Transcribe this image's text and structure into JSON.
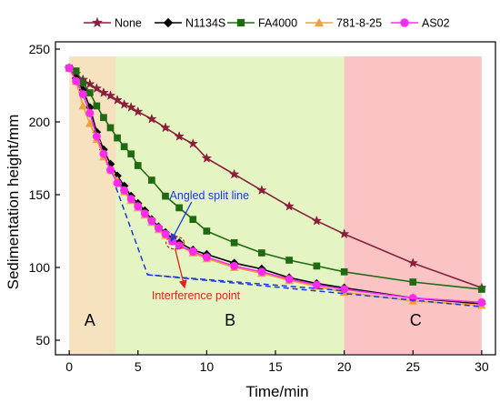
{
  "chart_data": {
    "type": "line",
    "xlabel": "Time/min",
    "ylabel": "Sedimentation height/mm",
    "xlim": [
      -1,
      31
    ],
    "ylim": [
      40,
      255
    ],
    "xticks": [
      0,
      5,
      10,
      15,
      20,
      25,
      30
    ],
    "yticks": [
      50,
      100,
      150,
      200,
      250
    ],
    "grid": false,
    "legend_position": "top",
    "regions": [
      {
        "label": "A",
        "x_start": 0,
        "x_end": 3.4,
        "color": "#f7e2c0",
        "label_x": 1.5,
        "label_y": 63
      },
      {
        "label": "B",
        "x_start": 3.4,
        "x_end": 20,
        "color": "#e4f4c2",
        "label_x": 11.7,
        "label_y": 63
      },
      {
        "label": "C",
        "x_start": 20,
        "x_end": 30,
        "color": "#fbc4c4",
        "label_x": 25.2,
        "label_y": 63
      }
    ],
    "series": [
      {
        "name": "None",
        "color": "#8b1e3a",
        "marker": "star",
        "x": [
          0,
          0.5,
          1,
          1.5,
          2,
          2.5,
          3,
          3.5,
          4,
          4.5,
          5,
          6,
          7,
          8,
          9,
          10,
          12,
          14,
          16,
          18,
          20,
          25,
          30
        ],
        "y": [
          237,
          233,
          229,
          226,
          223,
          220,
          218,
          215,
          212,
          210,
          207,
          202,
          196,
          190,
          185,
          175,
          164,
          153,
          142,
          132,
          123,
          103,
          86
        ]
      },
      {
        "name": "N1134S",
        "color": "#000000",
        "marker": "diamond",
        "x": [
          0,
          0.5,
          1,
          1.5,
          2,
          2.5,
          3,
          3.5,
          4,
          4.5,
          5,
          5.5,
          6,
          6.5,
          7,
          7.5,
          8,
          9,
          10,
          12,
          14,
          16,
          18,
          20,
          25,
          30
        ],
        "y": [
          237,
          230,
          222,
          210,
          193,
          181,
          171,
          163,
          156,
          149,
          144,
          139,
          133,
          128,
          124,
          120,
          117,
          112,
          109,
          103,
          99,
          93,
          89,
          86,
          79,
          75
        ]
      },
      {
        "name": "FA4000",
        "color": "#1f6b12",
        "marker": "square",
        "x": [
          0,
          0.5,
          1,
          1.5,
          2,
          2.5,
          3,
          3.5,
          4,
          4.5,
          5,
          6,
          7,
          8,
          9,
          10,
          12,
          14,
          16,
          18,
          20,
          25,
          30
        ],
        "y": [
          237,
          235,
          227,
          220,
          211,
          203,
          196,
          189,
          183,
          178,
          170,
          160,
          149,
          141,
          133,
          125,
          117,
          110,
          105,
          101,
          97,
          90,
          85
        ]
      },
      {
        "name": "781-8-25",
        "color": "#f2a03c",
        "marker": "triangle",
        "x": [
          0,
          0.5,
          1,
          1.5,
          2,
          2.5,
          3,
          3.5,
          4,
          4.5,
          5,
          5.5,
          6,
          6.5,
          7,
          7.5,
          8,
          9,
          10,
          12,
          14,
          16,
          18,
          20,
          25,
          30
        ],
        "y": [
          237,
          228,
          211,
          199,
          188,
          176,
          167,
          160,
          152,
          146,
          141,
          136,
          131,
          126,
          122,
          118,
          115,
          110,
          106,
          100,
          96,
          91,
          87,
          83,
          77,
          74
        ]
      },
      {
        "name": "AS02",
        "color": "#ff2cf0",
        "marker": "circle",
        "x": [
          0,
          0.5,
          1,
          1.5,
          2,
          2.5,
          3,
          3.5,
          4,
          4.5,
          5,
          5.5,
          6,
          6.5,
          7,
          7.5,
          8,
          9,
          10,
          12,
          14,
          16,
          18,
          20,
          25,
          30
        ],
        "y": [
          237,
          228,
          219,
          206,
          190,
          178,
          167,
          158,
          153,
          147,
          142,
          137,
          132,
          127,
          123,
          118,
          115,
          111,
          107,
          101,
          97,
          92,
          88,
          85,
          79,
          76
        ]
      }
    ],
    "annotations": {
      "split_line": {
        "label": "Angled split line",
        "color": "#1a3adf",
        "points": [
          [
            3.4,
            155
          ],
          [
            5.7,
            95
          ],
          [
            20,
            84
          ]
        ],
        "extension": [
          [
            5.7,
            95
          ],
          [
            30,
            73
          ]
        ],
        "pointer_from": [
          8.9,
          145
        ],
        "pointer_to": [
          7.4,
          118
        ],
        "label_x": 7.3,
        "label_y": 147
      },
      "interference_point": {
        "label": "Interference point",
        "color": "#e0241c",
        "circle_x": 7.7,
        "circle_y": 117,
        "pointer_from": [
          7.7,
          113
        ],
        "pointer_to": [
          8.4,
          86
        ],
        "label_x": 6.0,
        "label_y": 78
      }
    }
  }
}
